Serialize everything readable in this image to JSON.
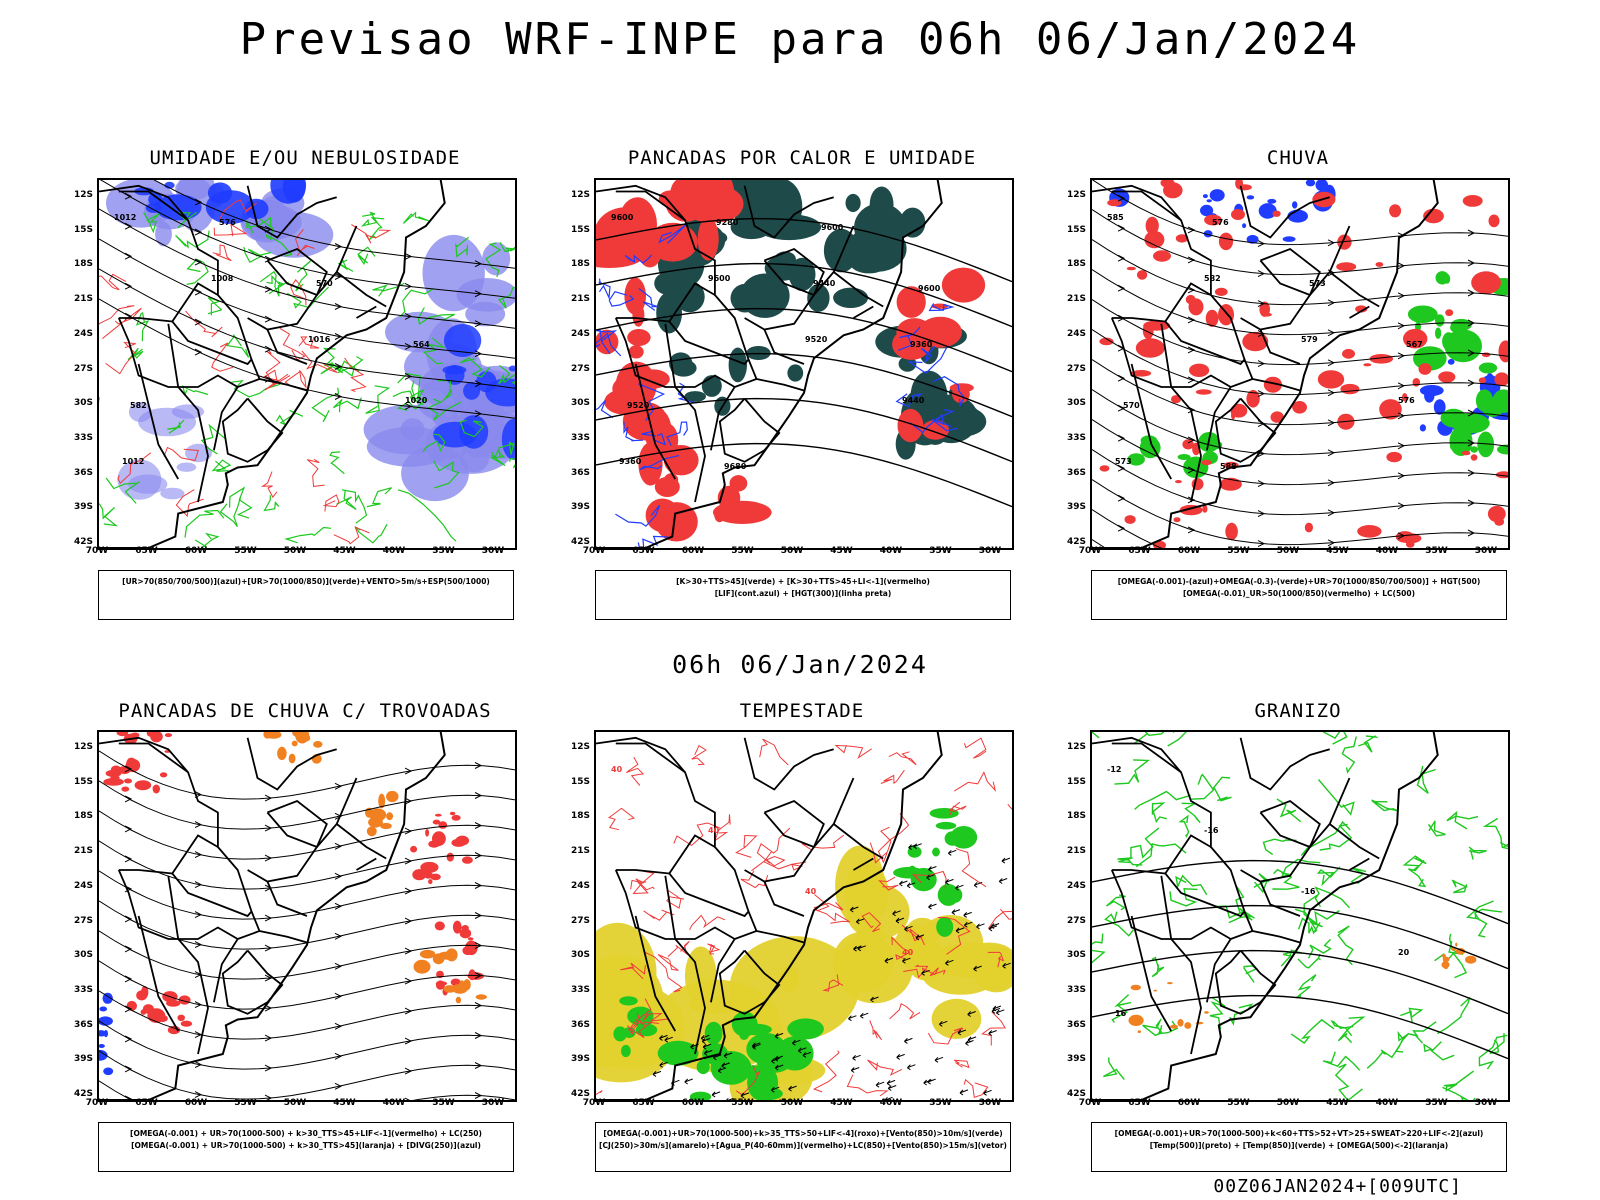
{
  "header": {
    "title": "Previsao WRF-INPE  para 06h 06/Jan/2024",
    "subtitle": "06h 06/Jan/2024",
    "run_info": "00Z06JAN2024+[009UTC]"
  },
  "axes": {
    "lat_labels": [
      "12S",
      "15S",
      "18S",
      "21S",
      "24S",
      "27S",
      "30S",
      "33S",
      "36S",
      "39S",
      "42S"
    ],
    "lon_labels": [
      "70W",
      "65W",
      "60W",
      "55W",
      "50W",
      "45W",
      "40W",
      "35W",
      "30W"
    ]
  },
  "panels": [
    {
      "title": "UMIDADE E/OU NEBULOSIDADE",
      "legend": [
        "[UR>70(850/700/500)](azul)+[UR>70(1000/850)](verde)+VENTO>5m/s+ESP(500/1000)"
      ],
      "contour_labels": [
        "1012",
        "1008",
        "1016",
        "1020",
        "1012",
        "576",
        "570",
        "564",
        "582"
      ]
    },
    {
      "title": "PANCADAS POR CALOR E UMIDADE",
      "legend": [
        "[K>30+TTS>45](verde) + [K>30+TTS>45+LI<-1](vermelho)",
        "[LIF](cont.azul) + [HGT(300)](linha preta)"
      ],
      "contour_labels": [
        "9600",
        "9600",
        "9520",
        "9440",
        "9360",
        "9280",
        "9440",
        "9360",
        "9520",
        "9680",
        "9600",
        "9600"
      ]
    },
    {
      "title": "CHUVA",
      "legend": [
        "[OMEGA(-0.001)-(azul)+OMEGA(-0.3)-(verde)+UR>70(1000/850/700/500)] + HGT(500)",
        "[OMEGA(-0.01)_UR>50(1000/850)(vermelho) + LC(500)"
      ],
      "contour_labels": [
        "585",
        "582",
        "579",
        "576",
        "573",
        "576",
        "573",
        "567",
        "570",
        "588"
      ]
    },
    {
      "title": "PANCADAS DE CHUVA C/ TROVOADAS",
      "legend": [
        "[OMEGA(-0.001) + UR>70(1000-500) + k>30_TTS>45+LIF<-1](vermelho) + LC(250)",
        "[OMEGA(-0.001) + UR>70(1000-500) + k>30_TTS>45](laranja) + [DIVG(250)](azul)"
      ],
      "contour_labels": []
    },
    {
      "title": "TEMPESTADE",
      "legend": [
        "[OMEGA(-0.001)+UR>70(1000-500)+k>35_TTS>50+LIF<-4](roxo)+[Vento(850)>10m/s](verde)",
        "[CJ(250)>30m/s](amarelo)+[Agua_P(40-60mm)](vermelho)+LC(850)+[Vento(850)>15m/s](vetor)"
      ],
      "contour_labels": [
        "40",
        "40",
        "40",
        "40"
      ]
    },
    {
      "title": "GRANIZO",
      "legend": [
        "[OMEGA(-0.001)+UR>70(1000-500)+k<60+TTS>52+VT>25+SWEAT>220+LIF<-2](azul)",
        "[Temp(500)](preto) + [Temp(850)](verde) + [OMEGA(500)<-2](laranja)"
      ],
      "contour_labels": [
        "-12",
        "-16",
        "-16",
        "20",
        "16"
      ]
    }
  ],
  "colors": {
    "blue": "#1f3cff",
    "purple": "#8a8aee",
    "green": "#1ec81e",
    "red": "#f03a3a",
    "darkteal": "#1f4a4a",
    "yellow": "#e3d12d",
    "orange": "#f08020"
  }
}
